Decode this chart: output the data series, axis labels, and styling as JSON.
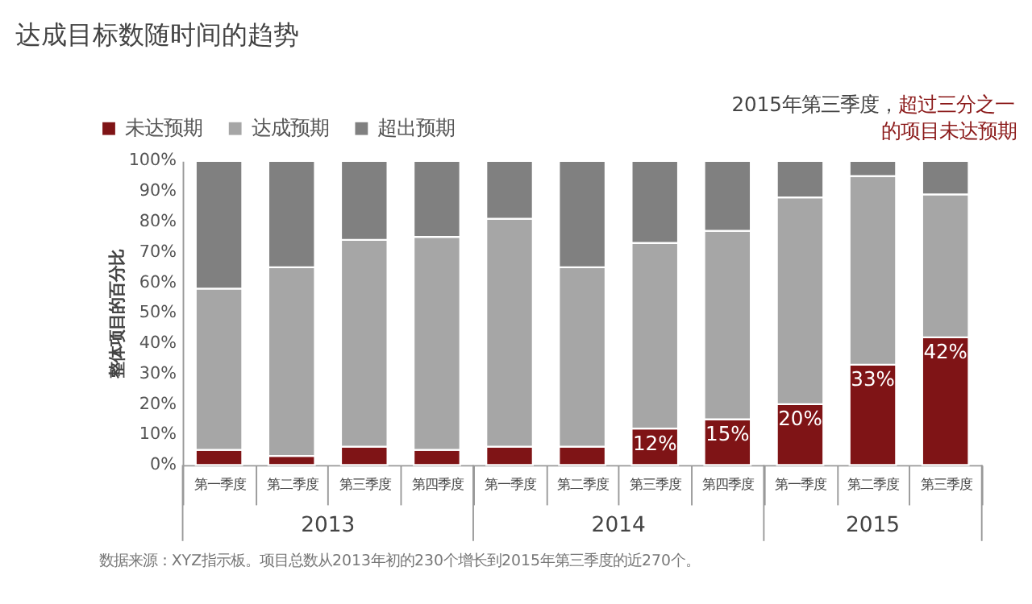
{
  "chart_data": {
    "type": "bar",
    "title": "达成目标数随时间的趋势",
    "stacked": true,
    "ylabel": "整体项目的百分比",
    "categories": [
      "第一季度",
      "第二季度",
      "第三季度",
      "第四季度",
      "第一季度",
      "第二季度",
      "第三季度",
      "第四季度",
      "第一季度",
      "第二季度",
      "第三季度"
    ],
    "series": [
      {
        "name": "未达预期",
        "color": "#7f1416",
        "values": [
          5,
          3,
          6,
          5,
          6,
          6,
          12,
          15,
          20,
          33,
          42
        ],
        "value_labels": [
          null,
          null,
          null,
          null,
          null,
          null,
          "12%",
          "15%",
          "20%",
          "33%",
          "42%"
        ]
      },
      {
        "name": "达成预期",
        "color": "#a6a6a6",
        "values": [
          53,
          62,
          68,
          70,
          75,
          59,
          61,
          62,
          68,
          62,
          47
        ]
      },
      {
        "name": "超出预期",
        "color": "#808080",
        "values": [
          42,
          35,
          26,
          25,
          19,
          35,
          27,
          23,
          12,
          5,
          11
        ]
      }
    ],
    "ylim": [
      0,
      100
    ],
    "yticks": [
      {
        "value": 0,
        "label": "0%"
      },
      {
        "value": 10,
        "label": "10%"
      },
      {
        "value": 20,
        "label": "20%"
      },
      {
        "value": 30,
        "label": "30%"
      },
      {
        "value": 40,
        "label": "40%"
      },
      {
        "value": 50,
        "label": "50%"
      },
      {
        "value": 60,
        "label": "60%"
      },
      {
        "value": 70,
        "label": "70%"
      },
      {
        "value": 80,
        "label": "80%"
      },
      {
        "value": 90,
        "label": "90%"
      },
      {
        "value": 100,
        "label": "100%"
      }
    ],
    "grid": false,
    "legend": "top left",
    "annotations": [
      "2013",
      "2014",
      "2015",
      "2015年第三季度，",
      "超过三分之一",
      "的项目未达预期",
      "数据来源：XYZ指示板。项目总数从2013年初的230个增长到2015年第三季度的近270个。"
    ]
  }
}
